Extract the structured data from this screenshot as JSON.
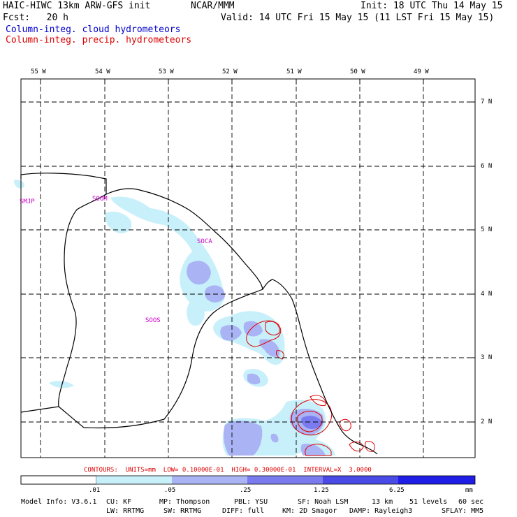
{
  "header": {
    "model": "HAIC-HIWC 13km ARW-GFS init",
    "org": "NCAR/MMM",
    "init": "Init: 18 UTC Thu 14 May 15",
    "fcst": "Fcst:   20 h",
    "valid": "Valid: 14 UTC Fri 15 May 15 (11 LST Fri 15 May 15)",
    "field1": "Column-integ. cloud hydrometeors",
    "field1_color": "#0000cc",
    "field2": "Column-integ. precip. hydrometeors",
    "field2_color": "#dd0000"
  },
  "longitudes": [
    "55 W",
    "54 W",
    "53 W",
    "52 W",
    "51 W",
    "50 W",
    "49 W"
  ],
  "latitudes": [
    "7 N",
    "6 N",
    "5 N",
    "4 N",
    "3 N",
    "2 N"
  ],
  "stations": [
    "SMJP",
    "SOOM",
    "SOCA",
    "SOOS"
  ],
  "station_color": "#cc00cc",
  "contours_note": "CONTOURS:  UNITS=mm  LOW= 0.10000E-01  HIGH= 0.30000E-01  INTERVAL=X  3.0000",
  "colorbar": {
    "labels": [
      ".01",
      ".05",
      ".25",
      "1.25",
      "6.25"
    ],
    "unit": "mm",
    "colors": [
      "#ffffff",
      "#c8f0fa",
      "#aab4f5",
      "#7b7bf0",
      "#4a4ae6",
      "#1e1ee6"
    ]
  },
  "footer": {
    "line1": {
      "model_info": "Model Info: V3.6.1",
      "cu": "CU: KF",
      "mp": "MP: Thompson",
      "pbl": "PBL: YSU",
      "sf": "SF: Noah LSM",
      "res": "13 km",
      "levels": "51 levels",
      "dt": "60 sec"
    },
    "line2": {
      "lw": "LW: RRTMG",
      "sw": "SW: RRTMG",
      "diff": "DIFF: full",
      "km": "KM: 2D Smagor",
      "damp": "DAMP: Rayleigh3",
      "sflay": "SFLAY: MM5"
    }
  }
}
